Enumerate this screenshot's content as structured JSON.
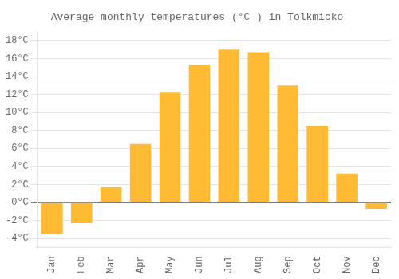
{
  "chart_data": {
    "type": "bar",
    "title": "Average monthly temperatures (°C ) in Tolkmicko",
    "categories": [
      "Jan",
      "Feb",
      "Mar",
      "Apr",
      "May",
      "Jun",
      "Jul",
      "Aug",
      "Sep",
      "Oct",
      "Nov",
      "Dec"
    ],
    "values": [
      -3.5,
      -2.3,
      1.7,
      6.5,
      12.2,
      15.3,
      17.0,
      16.7,
      13.0,
      8.5,
      3.2,
      -0.7
    ],
    "color": "#FFBB33",
    "ylim": [
      -5,
      19
    ],
    "yticks": [
      {
        "value": -4,
        "label": "-4°C"
      },
      {
        "value": -2,
        "label": "-2°C"
      },
      {
        "value": 0,
        "label": "0°C"
      },
      {
        "value": 2,
        "label": "2°C"
      },
      {
        "value": 4,
        "label": "4°C"
      },
      {
        "value": 6,
        "label": "6°C"
      },
      {
        "value": 8,
        "label": "8°C"
      },
      {
        "value": 10,
        "label": "10°C"
      },
      {
        "value": 12,
        "label": "12°C"
      },
      {
        "value": 14,
        "label": "14°C"
      },
      {
        "value": 16,
        "label": "16°C"
      },
      {
        "value": 18,
        "label": "18°C"
      }
    ],
    "grid": true
  }
}
